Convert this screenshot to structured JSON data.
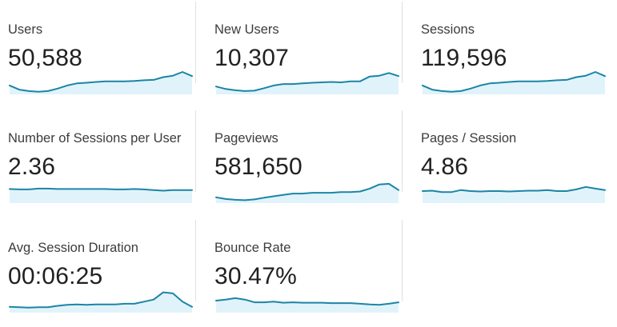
{
  "colors": {
    "line": "#1b85a6",
    "area": "#e1f3fa"
  },
  "metrics": [
    {
      "name": "Users",
      "value": "50,588",
      "trend": [
        0.35,
        0.15,
        0.08,
        0.05,
        0.08,
        0.2,
        0.35,
        0.45,
        0.48,
        0.52,
        0.55,
        0.55,
        0.55,
        0.57,
        0.6,
        0.62,
        0.75,
        0.82,
        1.0,
        0.8
      ]
    },
    {
      "name": "New Users",
      "value": "10,307",
      "trend": [
        0.3,
        0.18,
        0.12,
        0.08,
        0.1,
        0.22,
        0.35,
        0.42,
        0.42,
        0.45,
        0.48,
        0.5,
        0.52,
        0.5,
        0.55,
        0.55,
        0.78,
        0.82,
        0.95,
        0.8
      ]
    },
    {
      "name": "Sessions",
      "value": "119,596",
      "trend": [
        0.35,
        0.15,
        0.08,
        0.05,
        0.08,
        0.2,
        0.35,
        0.45,
        0.48,
        0.52,
        0.55,
        0.55,
        0.55,
        0.57,
        0.6,
        0.62,
        0.75,
        0.82,
        1.0,
        0.8
      ]
    },
    {
      "name": "Number of Sessions per User",
      "value": "2.36",
      "trend": [
        0.6,
        0.58,
        0.58,
        0.62,
        0.62,
        0.6,
        0.6,
        0.6,
        0.6,
        0.6,
        0.6,
        0.58,
        0.58,
        0.6,
        0.58,
        0.55,
        0.52,
        0.55,
        0.55,
        0.55
      ]
    },
    {
      "name": "Pageviews",
      "value": "581,650",
      "trend": [
        0.2,
        0.12,
        0.08,
        0.06,
        0.1,
        0.18,
        0.25,
        0.32,
        0.38,
        0.38,
        0.42,
        0.42,
        0.42,
        0.45,
        0.45,
        0.48,
        0.62,
        0.82,
        0.85,
        0.55
      ]
    },
    {
      "name": "Pages / Session",
      "value": "4.86",
      "trend": [
        0.5,
        0.52,
        0.45,
        0.45,
        0.55,
        0.5,
        0.48,
        0.5,
        0.5,
        0.48,
        0.5,
        0.52,
        0.52,
        0.55,
        0.5,
        0.5,
        0.58,
        0.7,
        0.62,
        0.55
      ]
    },
    {
      "name": "Avg. Session Duration",
      "value": "00:06:25",
      "trend": [
        0.2,
        0.18,
        0.16,
        0.18,
        0.18,
        0.25,
        0.3,
        0.32,
        0.3,
        0.32,
        0.32,
        0.32,
        0.35,
        0.35,
        0.45,
        0.55,
        0.9,
        0.85,
        0.45,
        0.2
      ]
    },
    {
      "name": "Bounce Rate",
      "value": "30.47%",
      "trend": [
        0.5,
        0.55,
        0.62,
        0.55,
        0.42,
        0.42,
        0.45,
        0.4,
        0.42,
        0.4,
        0.4,
        0.4,
        0.38,
        0.38,
        0.38,
        0.35,
        0.32,
        0.3,
        0.35,
        0.42
      ]
    }
  ]
}
